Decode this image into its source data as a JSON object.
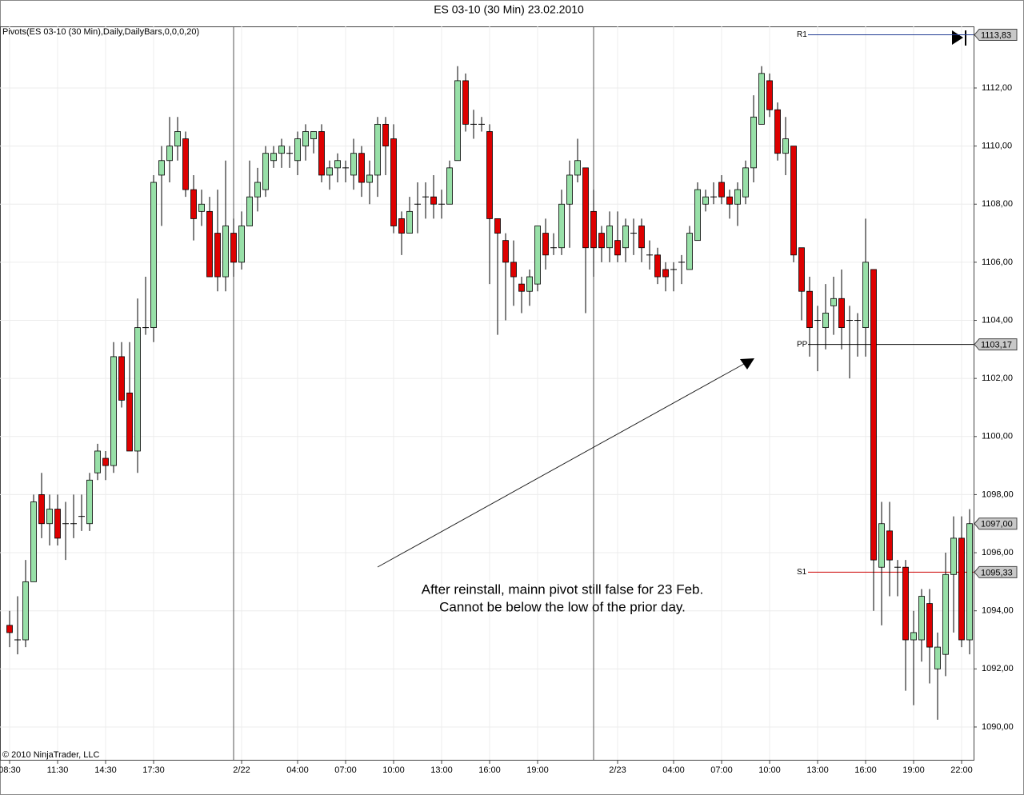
{
  "chart_data": {
    "type": "candlestick",
    "title": "ES 03-10 (30 Min)  23.02.2010",
    "indicator_label": "Pivots(ES 03-10 (30 Min),Daily,DailyBars,0,0,0,20)",
    "copyright": "© 2010 NinjaTrader, LLC",
    "annotation": [
      "After reinstall, mainn pivot still false for 23 Feb.",
      "Cannot be below the low of the prior day."
    ],
    "up_color": "#98e0a8",
    "down_color": "#dd0000",
    "categories": [
      "08:30",
      null,
      null,
      null,
      null,
      null,
      "11:30",
      null,
      null,
      null,
      null,
      null,
      "14:30",
      null,
      null,
      null,
      null,
      null,
      "17:30",
      null,
      null,
      null,
      null,
      null,
      null,
      null,
      null,
      null,
      null,
      "2/22",
      null,
      null,
      null,
      null,
      null,
      null,
      "04:00",
      null,
      null,
      null,
      null,
      null,
      "07:00",
      null,
      null,
      null,
      null,
      null,
      "10:00",
      null,
      null,
      null,
      null,
      null,
      "13:00",
      null,
      null,
      null,
      null,
      null,
      "16:00",
      null,
      null,
      null,
      null,
      null,
      "19:00",
      null,
      null,
      null,
      null,
      null,
      null,
      null,
      null,
      null,
      "2/23",
      null,
      null,
      null,
      null,
      null,
      null,
      "04:00",
      null,
      null,
      null,
      null,
      null,
      "07:00",
      null,
      null,
      null,
      null,
      null,
      "10:00",
      null,
      null,
      null,
      null,
      null,
      "13:00",
      null,
      null,
      null,
      null,
      null,
      "16:00",
      null,
      null,
      null,
      null,
      null,
      "19:00",
      null,
      null,
      null,
      null,
      null,
      "22:00",
      null
    ],
    "open": [
      1093.5,
      1093,
      1093,
      1095,
      1098,
      1097,
      1097.5,
      1097,
      1097,
      1097.25,
      1097,
      1098.75,
      1099.25,
      1099,
      1102.75,
      1101.5,
      1099.5,
      1103.75,
      1103.75,
      1109,
      1109.5,
      1110,
      1110.25,
      1108.5,
      1107.75,
      1107.75,
      1107,
      1105.5,
      1107,
      1106,
      1107.25,
      1108.25,
      1108.5,
      1109.5,
      1109.75,
      1109.75,
      1109.5,
      1110,
      1110.25,
      1110.5,
      1109,
      1109.25,
      1109.25,
      1109,
      1109.75,
      1108.75,
      1109,
      1110.75,
      1110.25,
      1107.5,
      1107,
      1108,
      1108.25,
      1108.25,
      1108,
      1108,
      1109.5,
      1112.25,
      1110.75,
      1110.75,
      1110.5,
      1107.5,
      1106.75,
      1106,
      1105.25,
      1105,
      1105.25,
      1107,
      1106.5,
      1106.5,
      1108,
      1109,
      1109.25,
      1107.75,
      1107,
      1106.5,
      1106.75,
      1106.5,
      1107,
      1107.25,
      1106.25,
      1106.25,
      1105.75,
      1105.75,
      1106,
      1105.75,
      1106.75,
      1108,
      1108.25,
      1108.75,
      1108.25,
      1108,
      1108.25,
      1109.25,
      1110.75,
      1112.25,
      1111.25,
      1109.75,
      1110,
      1106.5,
      1105,
      1104,
      1103.75,
      1104.5,
      1104.75,
      1104,
      1104,
      1103.75,
      1105.75,
      1095.5,
      1096.75,
      1095.5,
      1095.5,
      1093,
      1093,
      1094.25,
      1092,
      1092.5,
      1095.25,
      1096.5,
      1093
    ],
    "high": [
      1094,
      1094.5,
      1095.75,
      1098,
      1098.75,
      1098,
      1098,
      1097.75,
      1098,
      1098,
      1098.75,
      1099.75,
      1099.5,
      1103.25,
      1103.25,
      1103.25,
      1104.75,
      1105.5,
      1109,
      1110,
      1111,
      1111,
      1110.5,
      1109,
      1108.5,
      1108.25,
      1108.5,
      1109.5,
      1107.5,
      1107.75,
      1109.5,
      1109.25,
      1110,
      1110,
      1110.25,
      1110,
      1110.5,
      1110.75,
      1110.5,
      1110.75,
      1109.5,
      1109.75,
      1109.5,
      1110.25,
      1110,
      1109.5,
      1111,
      1111,
      1110.75,
      1107.75,
      1108.25,
      1108.75,
      1108.75,
      1109,
      1108.5,
      1109.5,
      1112.75,
      1112.5,
      1111.25,
      1111,
      1110.75,
      1107.5,
      1107,
      1106.75,
      1105.5,
      1105.75,
      1107.25,
      1107.5,
      1107,
      1108.5,
      1109.5,
      1110.25,
      1109.25,
      1108.5,
      1107.25,
      1107.75,
      1107.75,
      1107.5,
      1107.5,
      1107.5,
      1106.75,
      1106.5,
      1106,
      1106,
      1106.25,
      1107.25,
      1108.75,
      1108.5,
      1108.75,
      1109,
      1108.5,
      1108.75,
      1109.5,
      1111.75,
      1112.75,
      1112.5,
      1111.5,
      1111,
      1110,
      1106.5,
      1105.5,
      1104.5,
      1105.25,
      1105.5,
      1105.75,
      1104.5,
      1104.25,
      1107.5,
      1105.75,
      1097.75,
      1097.75,
      1095.75,
      1095.75,
      1094,
      1094.75,
      1094.75,
      1093.25,
      1096,
      1097.25,
      1097.25,
      1097.5
    ],
    "low": [
      1092.75,
      1092.5,
      1092.75,
      1095,
      1096.5,
      1096.25,
      1096.25,
      1095.75,
      1096.5,
      1096.75,
      1096.75,
      1098.5,
      1098.5,
      1098.75,
      1101,
      1099.5,
      1098.75,
      1103.5,
      1103.25,
      1107.25,
      1108.75,
      1109.5,
      1108.25,
      1106.75,
      1107.25,
      1105.5,
      1105,
      1105,
      1105.5,
      1105.75,
      1107.25,
      1107.75,
      1108.25,
      1109.25,
      1109.25,
      1109.25,
      1109,
      1109.5,
      1109.75,
      1108.75,
      1108.5,
      1108.75,
      1108.75,
      1108.5,
      1108.25,
      1108,
      1108.25,
      1109,
      1107,
      1106.25,
      1107,
      1107,
      1107.5,
      1107.5,
      1107.5,
      1108,
      1109.5,
      1110.5,
      1110.25,
      1110.5,
      1105.25,
      1103.5,
      1104,
      1104.5,
      1104.25,
      1104.5,
      1105,
      1105.75,
      1106.25,
      1106.25,
      1106.5,
      1108.75,
      1104.25,
      1105.5,
      1106,
      1106,
      1106,
      1106,
      1106.25,
      1106,
      1105.75,
      1105.25,
      1105,
      1105,
      1105.25,
      1105.75,
      1106.75,
      1107.75,
      1108,
      1108,
      1107.5,
      1107.25,
      1108,
      1108.75,
      1110.75,
      1111,
      1109.5,
      1109,
      1106,
      1104,
      1102.75,
      1102.25,
      1103,
      1103.5,
      1103,
      1102,
      1102.75,
      1102.75,
      1094,
      1093.5,
      1094.5,
      1094.5,
      1091.25,
      1090.75,
      1092.25,
      1091.5,
      1090.25,
      1091.75,
      1093.25,
      1092.75,
      1092.5
    ],
    "close": [
      1093.25,
      1093,
      1095,
      1097.75,
      1097,
      1097.5,
      1096.5,
      1097,
      1097,
      1097.25,
      1098.5,
      1099.5,
      1099,
      1102.75,
      1101.25,
      1099.5,
      1103.75,
      1103.75,
      1108.75,
      1109.5,
      1110,
      1110.5,
      1108.5,
      1107.5,
      1108,
      1105.5,
      1105.5,
      1107.25,
      1106,
      1107.25,
      1108.25,
      1108.75,
      1109.75,
      1109.75,
      1110,
      1109.75,
      1110.25,
      1110.5,
      1110.5,
      1109,
      1109.25,
      1109.5,
      1109.25,
      1109.75,
      1108.75,
      1109,
      1110.75,
      1110,
      1107.25,
      1107,
      1107.75,
      1108,
      1108.25,
      1108,
      1108,
      1109.25,
      1112.25,
      1110.75,
      1110.75,
      1110.75,
      1107.5,
      1107,
      1106,
      1105.5,
      1105,
      1105.5,
      1107.25,
      1106.25,
      1106.5,
      1108,
      1109,
      1109.5,
      1106.5,
      1106.5,
      1106.5,
      1107.25,
      1106.25,
      1107.25,
      1107,
      1106.5,
      1106.25,
      1105.5,
      1105.5,
      1105.75,
      1106,
      1107,
      1108.5,
      1108.25,
      1108.25,
      1108.25,
      1108,
      1108.5,
      1109.25,
      1111,
      1112.5,
      1111.25,
      1109.75,
      1110.25,
      1106.25,
      1105,
      1103.75,
      1104,
      1104.25,
      1104.75,
      1103.75,
      1104,
      1104,
      1106,
      1095.75,
      1097,
      1095.75,
      1095.5,
      1093,
      1093.25,
      1094.5,
      1092.75,
      1092.75,
      1095.25,
      1096.5,
      1093,
      1097
    ],
    "pivots": [
      {
        "name": "R1",
        "value": 1113.83,
        "label": "1113,83",
        "color": "#1f3a93"
      },
      {
        "name": "PP",
        "value": 1103.17,
        "label": "1103,17",
        "color": "#000000"
      },
      {
        "name": "S1",
        "value": 1095.33,
        "label": "1095,33",
        "color": "#cc0000"
      }
    ],
    "last_price": {
      "value": 1097,
      "label": "1097,00"
    },
    "ylim": [
      1088.87,
      1114.12
    ],
    "yticks": [
      {
        "value": 1090,
        "label": "1090,00"
      },
      {
        "value": 1092,
        "label": "1092,00"
      },
      {
        "value": 1094,
        "label": "1094,00"
      },
      {
        "value": 1096,
        "label": "1096,00"
      },
      {
        "value": 1098,
        "label": "1098,00"
      },
      {
        "value": 1100,
        "label": "1100,00"
      },
      {
        "value": 1102,
        "label": "1102,00"
      },
      {
        "value": 1104,
        "label": "1104,00"
      },
      {
        "value": 1106,
        "label": "1106,00"
      },
      {
        "value": 1108,
        "label": "1108,00"
      },
      {
        "value": 1110,
        "label": "1110,00"
      },
      {
        "value": 1112,
        "label": "1112,00"
      }
    ],
    "grid": true
  }
}
